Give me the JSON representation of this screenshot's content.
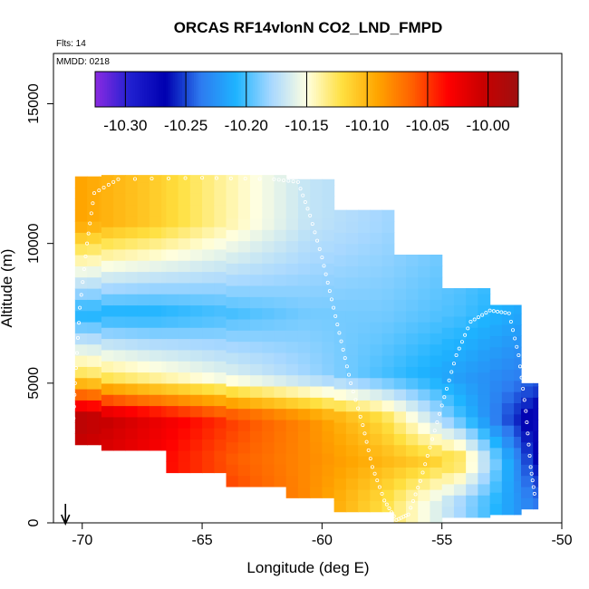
{
  "chart_data": {
    "type": "heatmap",
    "title": "ORCAS RF14vlonN CO2_LND_FMPD",
    "annotations": [
      "Flts: 14",
      "MMDD: 0218"
    ],
    "xlabel": "Longitude (deg E)",
    "ylabel": "Altitude (m)",
    "xlim": [
      -71.2,
      -50
    ],
    "ylim": [
      0,
      16800
    ],
    "x_ticks": [
      -70,
      -65,
      -60,
      -55,
      -50
    ],
    "x_tick_labels": [
      "-70",
      "-65",
      "-60",
      "-55",
      "-50"
    ],
    "y_ticks": [
      0,
      5000,
      10000,
      15000
    ],
    "y_tick_labels": [
      "0",
      "5000",
      "10000",
      "15000"
    ],
    "colorbar": {
      "range": [
        -10.325,
        -9.975
      ],
      "ticks": [
        -10.3,
        -10.25,
        -10.2,
        -10.15,
        -10.1,
        -10.05,
        -10.0
      ],
      "tick_labels": [
        "-10.30",
        "-10.25",
        "-10.20",
        "-10.15",
        "-10.10",
        "-10.05",
        "-10.00"
      ],
      "colors": [
        "#8B2BE2",
        "#2020D0",
        "#0000B0",
        "#2E7BF0",
        "#1EB4FF",
        "#A8D8FF",
        "#FFFFE0",
        "#FFE040",
        "#FFA500",
        "#FF6000",
        "#FF0000",
        "#C80000",
        "#9E1010"
      ]
    },
    "grid": false,
    "flight_arrow_longitude": -70.7,
    "curtain_columns": [
      {
        "lon_min": -70.3,
        "lon_max": -69.2,
        "alt_bottom": 2800,
        "alt_top": 12400
      },
      {
        "lon_min": -69.2,
        "lon_max": -66.5,
        "alt_bottom": 2600,
        "alt_top": 12450
      },
      {
        "lon_min": -66.5,
        "lon_max": -64.0,
        "alt_bottom": 1800,
        "alt_top": 12450
      },
      {
        "lon_min": -64.0,
        "lon_max": -61.5,
        "alt_bottom": 1300,
        "alt_top": 12450
      },
      {
        "lon_min": -61.5,
        "lon_max": -59.5,
        "alt_bottom": 900,
        "alt_top": 12300
      },
      {
        "lon_min": -59.5,
        "lon_max": -57.0,
        "alt_bottom": 400,
        "alt_top": 11200
      },
      {
        "lon_min": -57.0,
        "lon_max": -55.0,
        "alt_bottom": 0,
        "alt_top": 9600
      },
      {
        "lon_min": -55.0,
        "lon_max": -53.0,
        "alt_bottom": 200,
        "alt_top": 8400
      },
      {
        "lon_min": -53.0,
        "lon_max": -51.7,
        "alt_bottom": 300,
        "alt_top": 7800
      },
      {
        "lon_min": -51.7,
        "lon_max": -51.0,
        "alt_bottom": 500,
        "alt_top": 5000
      }
    ],
    "value_bands": [
      {
        "alt_min": 0,
        "alt_max": 1500,
        "values_west_to_east": [
          -10.02,
          -10.03,
          -10.05,
          -10.08,
          -10.12,
          -10.18,
          -10.24
        ]
      },
      {
        "alt_min": 1500,
        "alt_max": 3000,
        "values_west_to_east": [
          -10.01,
          -10.03,
          -10.06,
          -10.08,
          -10.1,
          -10.12,
          -10.27
        ]
      },
      {
        "alt_min": 3000,
        "alt_max": 4500,
        "values_west_to_east": [
          -9.99,
          -10.02,
          -10.05,
          -10.08,
          -10.12,
          -10.2,
          -10.28
        ]
      },
      {
        "alt_min": 4500,
        "alt_max": 6000,
        "values_west_to_east": [
          -10.12,
          -10.14,
          -10.16,
          -10.18,
          -10.2,
          -10.22,
          -10.24
        ]
      },
      {
        "alt_min": 6000,
        "alt_max": 9000,
        "values_west_to_east": [
          -10.21,
          -10.21,
          -10.2,
          -10.19,
          -10.19,
          -10.2,
          -10.22
        ]
      },
      {
        "alt_min": 9000,
        "alt_max": 12500,
        "values_west_to_east": [
          -10.09,
          -10.11,
          -10.14,
          -10.17,
          -10.18,
          -10.19,
          -10.2
        ]
      }
    ],
    "flight_track": [
      {
        "lon": -70.4,
        "alt": 2900
      },
      {
        "lon": -70.3,
        "alt": 5000
      },
      {
        "lon": -70.1,
        "alt": 7700
      },
      {
        "lon": -69.8,
        "alt": 10000
      },
      {
        "lon": -69.5,
        "alt": 11800
      },
      {
        "lon": -68.5,
        "alt": 12300
      },
      {
        "lon": -65.0,
        "alt": 12350
      },
      {
        "lon": -62.0,
        "alt": 12300
      },
      {
        "lon": -61.0,
        "alt": 12200
      },
      {
        "lon": -60.5,
        "alt": 11000
      },
      {
        "lon": -60.0,
        "alt": 9500
      },
      {
        "lon": -59.6,
        "alt": 8000
      },
      {
        "lon": -59.2,
        "alt": 6500
      },
      {
        "lon": -58.8,
        "alt": 5000
      },
      {
        "lon": -58.3,
        "alt": 3500
      },
      {
        "lon": -57.9,
        "alt": 2000
      },
      {
        "lon": -57.4,
        "alt": 800
      },
      {
        "lon": -56.9,
        "alt": 100
      },
      {
        "lon": -56.4,
        "alt": 300
      },
      {
        "lon": -55.9,
        "alt": 1500
      },
      {
        "lon": -55.4,
        "alt": 3000
      },
      {
        "lon": -54.9,
        "alt": 4500
      },
      {
        "lon": -54.4,
        "alt": 6000
      },
      {
        "lon": -53.8,
        "alt": 7200
      },
      {
        "lon": -53.0,
        "alt": 7600
      },
      {
        "lon": -52.2,
        "alt": 7500
      },
      {
        "lon": -51.8,
        "alt": 6000
      },
      {
        "lon": -51.5,
        "alt": 4000
      },
      {
        "lon": -51.3,
        "alt": 2000
      },
      {
        "lon": -51.1,
        "alt": 800
      }
    ]
  }
}
